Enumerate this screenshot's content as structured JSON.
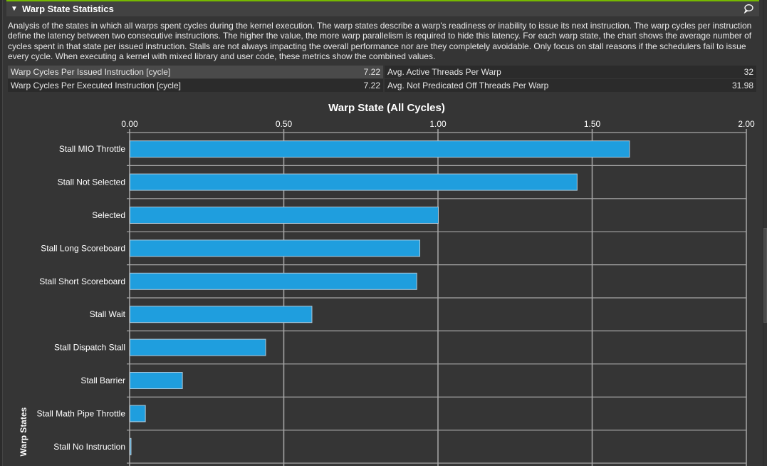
{
  "section": {
    "title": "Warp State Statistics",
    "collapse_icon": "triangle-down-icon",
    "comment_icon": "speech-bubble-icon",
    "description": "Analysis of the states in which all warps spent cycles during the kernel execution. The warp states describe a warp's readiness or inability to issue its next instruction. The warp cycles per instruction define the latency between two consecutive instructions. The higher the value, the more warp parallelism is required to hide this latency. For each warp state, the chart shows the average number of cycles spent in that state per issued instruction. Stalls are not always impacting the overall performance nor are they completely avoidable. Only focus on stall reasons if the schedulers fail to issue every cycle. When executing a kernel with mixed library and user code, these metrics show the combined values."
  },
  "metrics": [
    {
      "left_label": "Warp Cycles Per Issued Instruction [cycle]",
      "left_value": "7.22",
      "right_label": "Avg. Active Threads Per Warp",
      "right_value": "32"
    },
    {
      "left_label": "Warp Cycles Per Executed Instruction [cycle]",
      "left_value": "7.22",
      "right_label": "Avg. Not Predicated Off Threads Per Warp",
      "right_value": "31.98"
    }
  ],
  "colors": {
    "accent": "#76b900",
    "bar": "#1f9ede",
    "bar_border": "#b0c8d8"
  },
  "chart_data": {
    "type": "bar",
    "orientation": "horizontal",
    "title": "Warp State (All Cycles)",
    "ylabel": "Warp States",
    "xlabel": "",
    "xlim": [
      0,
      2
    ],
    "xticks": [
      "0.00",
      "0.50",
      "1.00",
      "1.50",
      "2.00"
    ],
    "grid": true,
    "categories": [
      "Stall MIO Throttle",
      "Stall Not Selected",
      "Selected",
      "Stall Long Scoreboard",
      "Stall Short Scoreboard",
      "Stall Wait",
      "Stall Dispatch Stall",
      "Stall Barrier",
      "Stall Math Pipe Throttle",
      "Stall No Instruction"
    ],
    "values": [
      1.62,
      1.45,
      1.0,
      0.94,
      0.93,
      0.59,
      0.44,
      0.17,
      0.05,
      0.003
    ]
  }
}
